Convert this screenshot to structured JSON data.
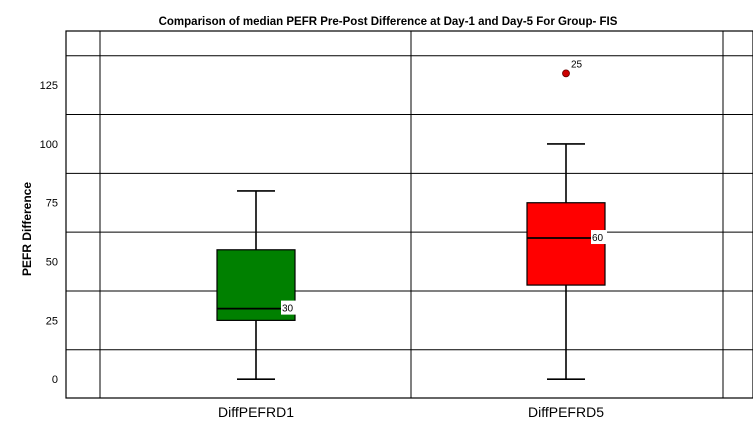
{
  "chart_data": {
    "type": "boxplot",
    "title": "Comparison of median PEFR Pre-Post Difference at Day-1 and Day-5 For Group- FIS",
    "xlabel": "",
    "ylabel": "PEFR Difference",
    "ylim": [
      -8,
      148
    ],
    "yticks": [
      0,
      25,
      50,
      75,
      100,
      125
    ],
    "grid": true,
    "series": [
      {
        "category": "DiffPEFRD1",
        "color": "#008000",
        "min": 0,
        "q1": 25,
        "median": 30,
        "q3": 55,
        "max": 80,
        "median_label": "30",
        "outliers": []
      },
      {
        "category": "DiffPEFRD5",
        "color": "#ff0000",
        "min": 0,
        "q1": 40,
        "median": 60,
        "q3": 75,
        "max": 100,
        "median_label": "60",
        "outliers": [
          {
            "value": 130,
            "label": "25"
          }
        ]
      }
    ]
  }
}
